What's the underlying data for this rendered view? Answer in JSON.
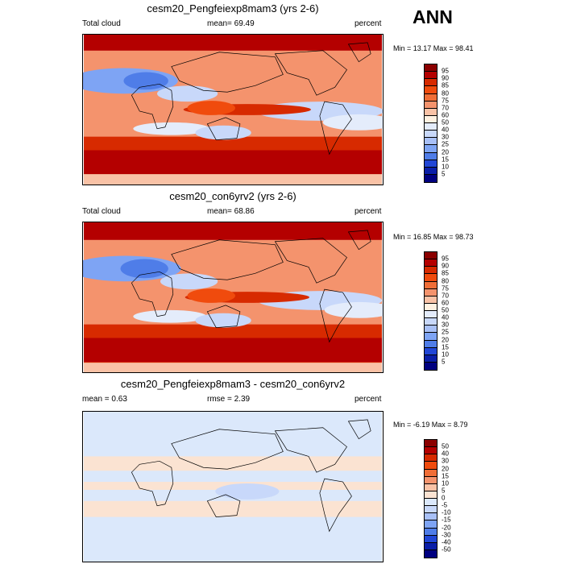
{
  "header": {
    "season": "ANN"
  },
  "panels": [
    {
      "title": "cesm20_Pengfeiexp8mam3 (yrs 2-6)",
      "left_label": "Total cloud",
      "mid_label": "mean=  69.49",
      "right_label": "percent",
      "minmax": "Min =  13.17 Max =  98.41",
      "field_kind": "absolute"
    },
    {
      "title": "cesm20_con6yrv2 (yrs 2-6)",
      "left_label": "Total cloud",
      "mid_label": "mean=  68.86",
      "right_label": "percent",
      "minmax": "Min =  16.85 Max =  98.73",
      "field_kind": "absolute"
    },
    {
      "title": "cesm20_Pengfeiexp8mam3 - cesm20_con6yrv2",
      "left_label": "mean =   0.63",
      "mid_label": "rmse =   2.39",
      "right_label": "percent",
      "minmax": "Min =  -6.19 Max =   8.79",
      "field_kind": "difference"
    }
  ],
  "colorbars": [
    {
      "levels": [
        "95",
        "90",
        "85",
        "80",
        "75",
        "70",
        "60",
        "50",
        "40",
        "30",
        "25",
        "20",
        "15",
        "10",
        "5"
      ],
      "colors": [
        "#8b0000",
        "#b40000",
        "#d72a00",
        "#f04b0d",
        "#f06e37",
        "#f4936d",
        "#f9c2a6",
        "#fff1e1",
        "#e4ecfb",
        "#c8d8fa",
        "#a8c0f7",
        "#7ea4f4",
        "#4f7de8",
        "#2146d6",
        "#0a1ea8",
        "#000080"
      ]
    },
    {
      "levels": [
        "95",
        "90",
        "85",
        "80",
        "75",
        "70",
        "60",
        "50",
        "40",
        "30",
        "25",
        "20",
        "15",
        "10",
        "5"
      ],
      "colors": [
        "#8b0000",
        "#b40000",
        "#d72a00",
        "#f04b0d",
        "#f06e37",
        "#f4936d",
        "#f9c2a6",
        "#fff1e1",
        "#e4ecfb",
        "#c8d8fa",
        "#a8c0f7",
        "#7ea4f4",
        "#4f7de8",
        "#2146d6",
        "#0a1ea8",
        "#000080"
      ]
    },
    {
      "levels": [
        "50",
        "40",
        "30",
        "20",
        "15",
        "10",
        "5",
        "0",
        "-5",
        "-10",
        "-15",
        "-20",
        "-30",
        "-40",
        "-50"
      ],
      "colors": [
        "#8b0000",
        "#b40000",
        "#d72a00",
        "#f04b0d",
        "#f06e37",
        "#f4936d",
        "#f9c2a6",
        "#fbe3d2",
        "#dbe8fb",
        "#c8d8fa",
        "#a8c0f7",
        "#7ea4f4",
        "#4f7de8",
        "#2146d6",
        "#0a1ea8",
        "#000080"
      ]
    }
  ],
  "chart_data": [
    {
      "type": "heatmap",
      "title": "cesm20_Pengfeiexp8mam3 (yrs 2-6)",
      "variable": "Total cloud",
      "units": "percent",
      "mean": 69.49,
      "min": 13.17,
      "max": 98.41
    },
    {
      "type": "heatmap",
      "title": "cesm20_con6yrv2 (yrs 2-6)",
      "variable": "Total cloud",
      "units": "percent",
      "mean": 68.86,
      "min": 16.85,
      "max": 98.73
    },
    {
      "type": "heatmap",
      "title": "cesm20_Pengfeiexp8mam3 - cesm20_con6yrv2",
      "units": "percent",
      "mean": 0.63,
      "rmse": 2.39,
      "min": -6.19,
      "max": 8.79
    }
  ]
}
